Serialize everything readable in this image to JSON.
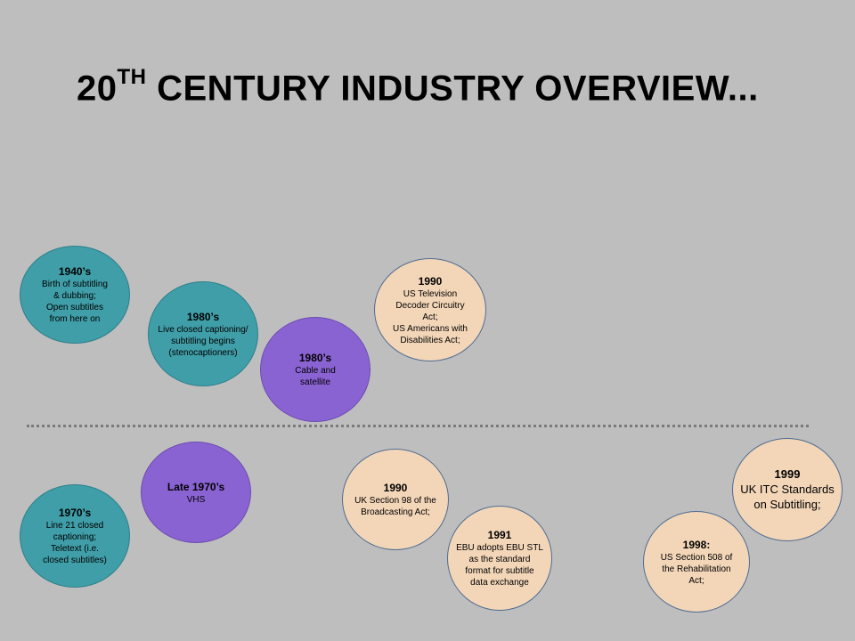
{
  "slide": {
    "title_prefix": "20",
    "title_sup": "TH",
    "title_rest": " CENTURY INDUSTRY OVERVIEW..."
  },
  "events": {
    "e1940s": {
      "year": "1940’s",
      "desc": "Birth of subtitling\n& dubbing;\nOpen subtitles\nfrom here on"
    },
    "e1980s_captioning": {
      "year": "1980’s",
      "desc": "Live closed captioning/\nsubtitling begins\n(stenocaptioners)"
    },
    "e1980s_cable": {
      "year": "1980’s",
      "desc": "Cable and\nsatellite"
    },
    "e1990_us": {
      "year": "1990",
      "desc": "US Television\nDecoder Circuitry\nAct;\nUS Americans with\nDisabilities Act;"
    },
    "e1970s": {
      "year": "1970’s",
      "desc": "Line 21 closed\ncaptioning;\nTeletext (i.e.\nclosed subtitles)"
    },
    "elate1970s": {
      "year": "Late 1970’s",
      "desc": "VHS"
    },
    "e1990_uk": {
      "year": "1990",
      "desc": "UK Section 98 of the\nBroadcasting Act;"
    },
    "e1991": {
      "year": "1991",
      "desc": "EBU adopts EBU STL\nas the standard\nformat for subtitle\ndata exchange"
    },
    "e1998": {
      "year": "1998:",
      "desc": "US Section 508 of\nthe Rehabilitation\nAct;"
    },
    "e1999": {
      "year": "1999",
      "desc": "UK ITC Standards\non Subtitling;"
    }
  },
  "colors": {
    "background": "#bebebe",
    "teal": "#3f9ea8",
    "purple": "#8a63d2",
    "peach": "#f3d6b8"
  }
}
